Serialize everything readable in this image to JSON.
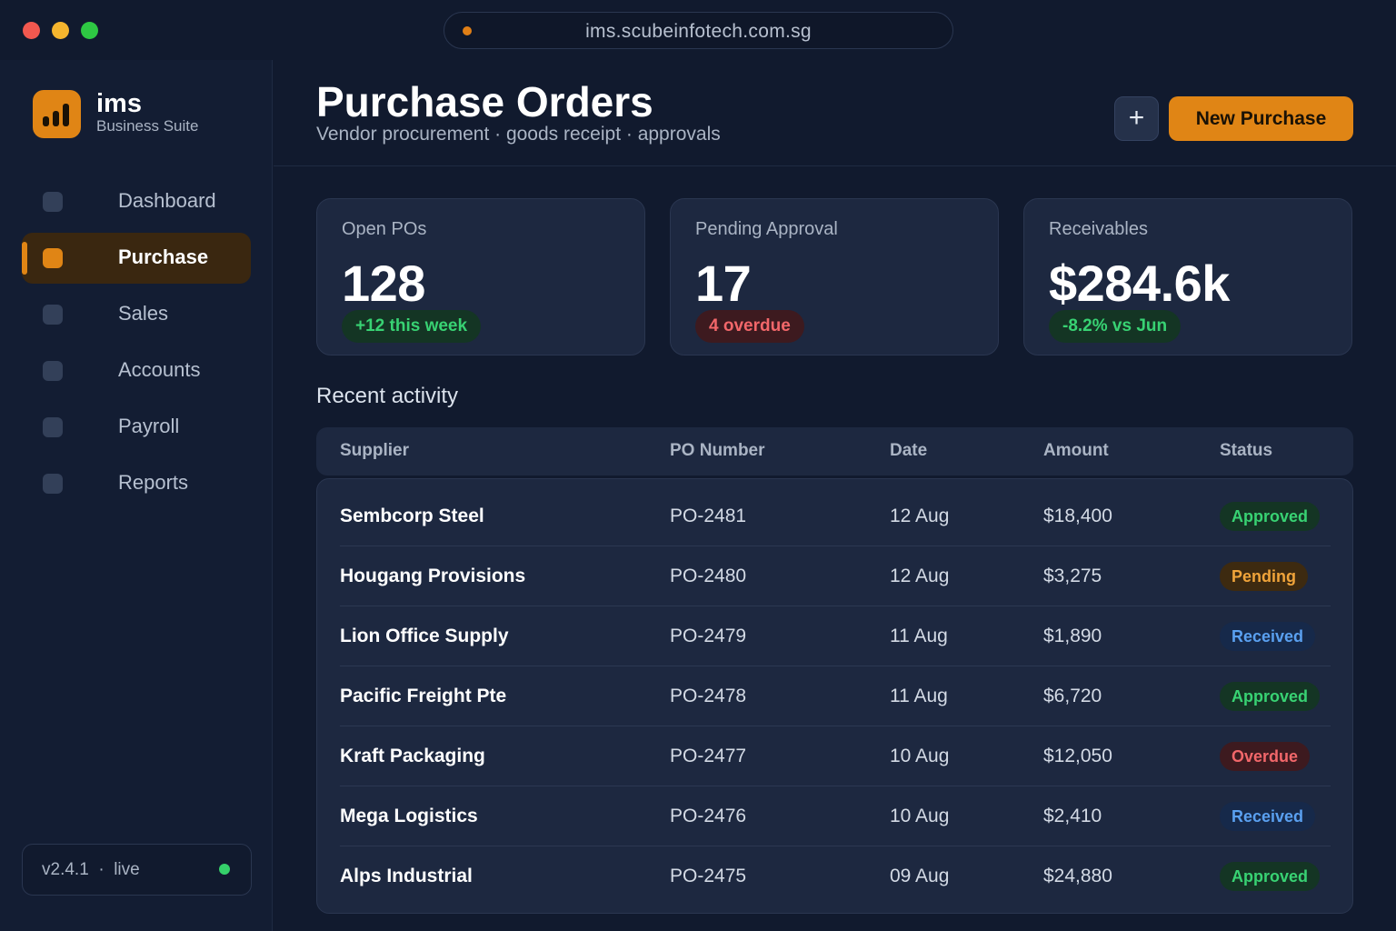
{
  "window": {
    "url": "ims.scubeinfotech.com.sg"
  },
  "brand": {
    "name": "ims",
    "subtitle": "Business Suite"
  },
  "sidebar": {
    "items": [
      {
        "label": "Dashboard",
        "icon": "dashboard-icon",
        "active": false
      },
      {
        "label": "Purchase",
        "icon": "purchase-icon",
        "active": true
      },
      {
        "label": "Sales",
        "icon": "sales-icon",
        "active": false
      },
      {
        "label": "Accounts",
        "icon": "accounts-icon",
        "active": false
      },
      {
        "label": "Payroll",
        "icon": "payroll-icon",
        "active": false
      },
      {
        "label": "Reports",
        "icon": "reports-icon",
        "active": false
      }
    ],
    "version": "v2.4.1  ·  live"
  },
  "header": {
    "title": "Purchase Orders",
    "subtitle": "Vendor procurement · goods receipt · approvals",
    "add_icon": "+",
    "new_button": "New Purchase"
  },
  "stats": [
    {
      "label": "Open POs",
      "value": "128",
      "badge": "+12 this week",
      "badge_tone": "good"
    },
    {
      "label": "Pending Approval",
      "value": "17",
      "badge": "4 overdue",
      "badge_tone": "bad"
    },
    {
      "label": "Receivables",
      "value": "$284.6k",
      "badge": "-8.2% vs Jun",
      "badge_tone": "good"
    }
  ],
  "activity": {
    "title": "Recent activity",
    "columns": [
      "Supplier",
      "PO Number",
      "Date",
      "Amount",
      "Status"
    ],
    "rows": [
      {
        "supplier": "Sembcorp Steel",
        "po": "PO-2481",
        "date": "12 Aug",
        "amount": "$18,400",
        "status": "Approved"
      },
      {
        "supplier": "Hougang Provisions",
        "po": "PO-2480",
        "date": "12 Aug",
        "amount": "$3,275",
        "status": "Pending"
      },
      {
        "supplier": "Lion Office Supply",
        "po": "PO-2479",
        "date": "11 Aug",
        "amount": "$1,890",
        "status": "Received"
      },
      {
        "supplier": "Pacific Freight Pte",
        "po": "PO-2478",
        "date": "11 Aug",
        "amount": "$6,720",
        "status": "Approved"
      },
      {
        "supplier": "Kraft Packaging",
        "po": "PO-2477",
        "date": "10 Aug",
        "amount": "$12,050",
        "status": "Overdue"
      },
      {
        "supplier": "Mega Logistics",
        "po": "PO-2476",
        "date": "10 Aug",
        "amount": "$2,410",
        "status": "Received"
      },
      {
        "supplier": "Alps Industrial",
        "po": "PO-2475",
        "date": "09 Aug",
        "amount": "$24,880",
        "status": "Approved"
      }
    ]
  },
  "colors": {
    "accent": "#e08515",
    "background": "#111a2e",
    "approved": "#38d273",
    "pending": "#f0a43a",
    "received": "#5aa0f0",
    "overdue": "#f2676a"
  }
}
